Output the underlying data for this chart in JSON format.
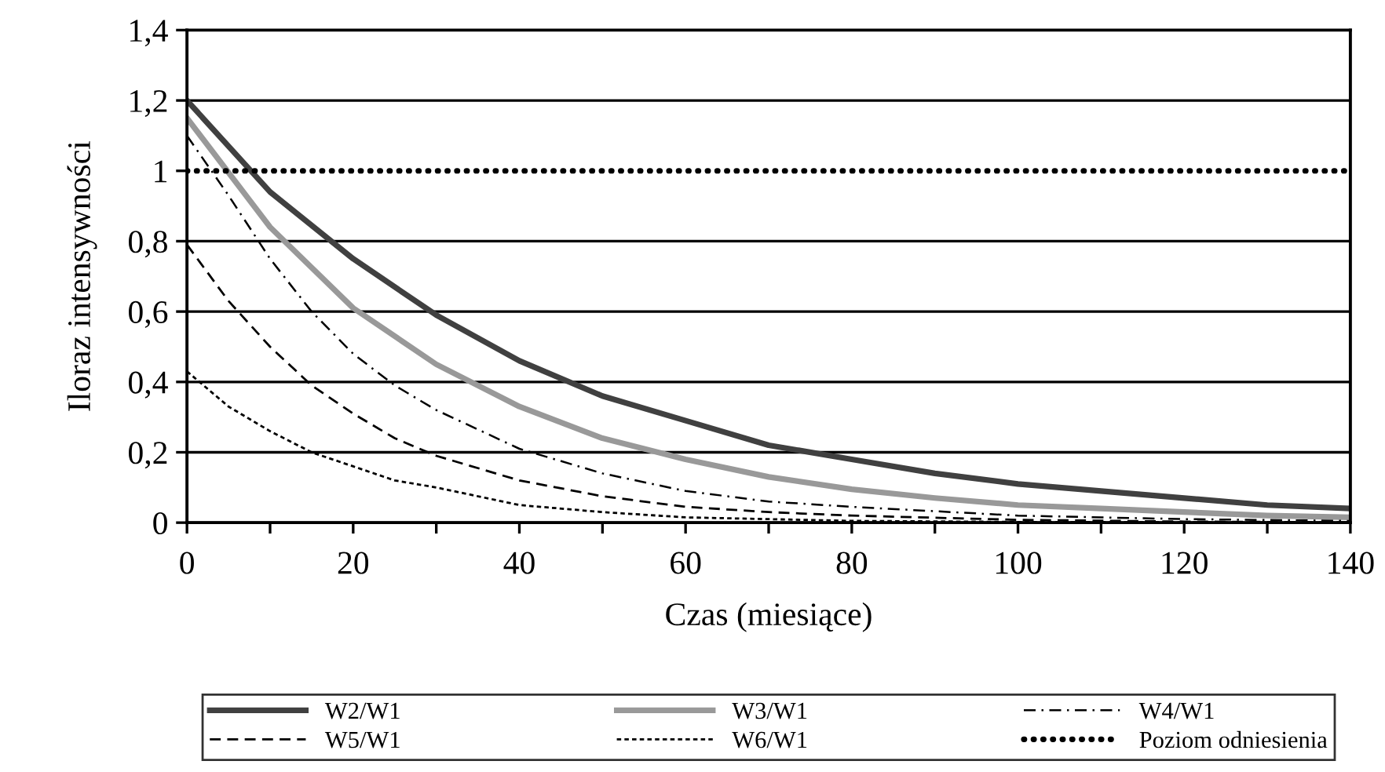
{
  "chart_data": {
    "type": "line",
    "xlabel": "Czas (miesiące)",
    "ylabel": "Iloraz intensywności",
    "xlim": [
      0,
      140
    ],
    "ylim": [
      0,
      1.4
    ],
    "xticks": [
      0,
      {
        "value": 10,
        "label": null
      },
      20,
      {
        "value": 30,
        "label": null
      },
      40,
      {
        "value": 50,
        "label": null
      },
      60,
      {
        "value": 70,
        "label": null
      },
      80,
      {
        "value": 90,
        "label": null
      },
      100,
      {
        "value": 110,
        "label": null
      },
      120,
      {
        "value": 130,
        "label": null
      },
      140
    ],
    "yticks": [
      0,
      {
        "value": 0.2,
        "label": "0,2"
      },
      {
        "value": 0.4,
        "label": "0,4"
      },
      {
        "value": 0.6,
        "label": "0,6"
      },
      {
        "value": 0.8,
        "label": "0,8"
      },
      1,
      {
        "value": 1.2,
        "label": "1,2"
      },
      {
        "value": 1.4,
        "label": "1,4"
      }
    ],
    "grid": "y",
    "legend": "bottom",
    "series": [
      {
        "name": "W2/W1",
        "color": "#404040",
        "line_style": "solid",
        "x": [
          0,
          10,
          20,
          30,
          40,
          50,
          60,
          70,
          80,
          90,
          100,
          110,
          120,
          130,
          140
        ],
        "values": [
          1.2,
          0.94,
          0.75,
          0.59,
          0.46,
          0.36,
          0.29,
          0.22,
          0.18,
          0.14,
          0.11,
          0.09,
          0.07,
          0.05,
          0.04
        ]
      },
      {
        "name": "W3/W1",
        "color": "#999999",
        "line_style": "solid",
        "x": [
          0,
          10,
          20,
          30,
          40,
          50,
          60,
          70,
          80,
          90,
          100,
          110,
          120,
          130,
          140
        ],
        "values": [
          1.15,
          0.84,
          0.61,
          0.45,
          0.33,
          0.24,
          0.18,
          0.13,
          0.095,
          0.07,
          0.05,
          0.04,
          0.03,
          0.02,
          0.015
        ]
      },
      {
        "name": "W4/W1",
        "color": "#000000",
        "line_style": "dashdot",
        "x": [
          0,
          5,
          10,
          15,
          20,
          25,
          30,
          40,
          50,
          60,
          70,
          80,
          100,
          120,
          140
        ],
        "values": [
          1.1,
          0.93,
          0.75,
          0.6,
          0.48,
          0.39,
          0.32,
          0.21,
          0.14,
          0.09,
          0.06,
          0.045,
          0.02,
          0.01,
          0.005
        ]
      },
      {
        "name": "W5/W1",
        "color": "#000000",
        "line_style": "dashed",
        "x": [
          0,
          5,
          10,
          15,
          20,
          25,
          30,
          40,
          50,
          60,
          70,
          80,
          100,
          120,
          140
        ],
        "values": [
          0.79,
          0.63,
          0.5,
          0.39,
          0.31,
          0.24,
          0.19,
          0.12,
          0.075,
          0.045,
          0.03,
          0.02,
          0.008,
          0.003,
          0.001
        ]
      },
      {
        "name": "W6/W1",
        "color": "#000000",
        "line_style": "dotted",
        "x": [
          0,
          5,
          10,
          15,
          20,
          25,
          30,
          40,
          50,
          60,
          70,
          80,
          100,
          140
        ],
        "values": [
          0.43,
          0.33,
          0.26,
          0.2,
          0.16,
          0.12,
          0.1,
          0.05,
          0.03,
          0.015,
          0.01,
          0.005,
          0.002,
          0
        ]
      },
      {
        "name": "Poziom odniesienia",
        "color": "#000000",
        "line_style": "dotted",
        "x": [
          0,
          140
        ],
        "values": [
          1,
          1
        ]
      }
    ]
  }
}
